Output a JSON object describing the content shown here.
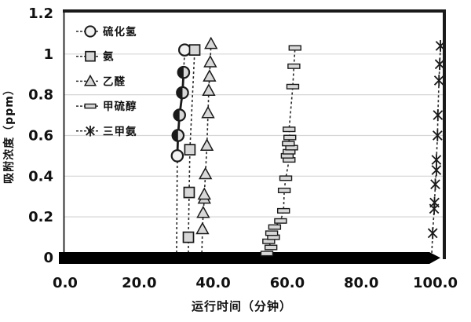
{
  "page": {
    "background": "#ffffff"
  },
  "chart_data": {
    "type": "scatter",
    "title": "",
    "xlabel": "运行时间（分钟）",
    "ylabel": "吸附浓度（ppm）",
    "xlim": [
      0,
      103
    ],
    "ylim": [
      0,
      1.2
    ],
    "grid": "horizontal-light",
    "legend_position": "upper-left-inside",
    "x_ticks": {
      "values": [
        0,
        20,
        40,
        60,
        80,
        100
      ],
      "labels": [
        "0.0",
        "20.0",
        "40.0",
        "60.0",
        "80.0",
        "100.0"
      ]
    },
    "y_ticks": {
      "values": [
        0,
        0.2,
        0.4,
        0.6,
        0.8,
        1.0,
        1.2
      ],
      "labels": [
        "0",
        "0.2",
        "0.4",
        "0.6",
        "0.8",
        "1",
        "1.2"
      ]
    },
    "baseline_band": {
      "description": "thick black band of overlapped zero-value points along y=0 ending in right arrow tip",
      "from_x": 0,
      "to_x": 100,
      "y": 0,
      "arrow_end": true
    },
    "series": [
      {
        "key": "h2s",
        "name": "硫化氢",
        "marker": "circle",
        "line": "dashed",
        "points": [
          [
            30.1,
            0
          ],
          [
            30.3,
            0.5
          ],
          [
            30.5,
            0.6
          ],
          [
            30.9,
            0.7
          ],
          [
            31.7,
            0.81
          ],
          [
            32.0,
            0.91
          ],
          [
            32.3,
            1.02
          ]
        ],
        "half_filled_indices": [
          2,
          3,
          4,
          5
        ],
        "solid_segment": [
          1,
          5
        ]
      },
      {
        "key": "nh3",
        "name": "氨",
        "marker": "square",
        "line": "dashed",
        "points": [
          [
            33.3,
            0
          ],
          [
            33.3,
            0.1
          ],
          [
            33.5,
            0.32
          ],
          [
            33.7,
            0.53
          ],
          [
            35.0,
            1.02
          ]
        ]
      },
      {
        "key": "acetaldehyde",
        "name": "乙醛",
        "marker": "triangle",
        "line": "dashed",
        "points": [
          [
            36.9,
            0
          ],
          [
            37.1,
            0.14
          ],
          [
            37.3,
            0.22
          ],
          [
            37.6,
            0.29
          ],
          [
            37.6,
            0.31
          ],
          [
            37.9,
            0.41
          ],
          [
            38.3,
            0.55
          ],
          [
            38.6,
            0.71
          ],
          [
            38.8,
            0.82
          ],
          [
            39.0,
            0.89
          ],
          [
            39.2,
            0.96
          ],
          [
            39.4,
            1.05
          ]
        ]
      },
      {
        "key": "methyl-mercaptan",
        "name": "甲硫醇",
        "marker": "dash-bar",
        "line": "dashed",
        "points": [
          [
            54.2,
            0
          ],
          [
            54.5,
            0.02
          ],
          [
            55.6,
            0.05
          ],
          [
            55.0,
            0.08
          ],
          [
            56.3,
            0.1
          ],
          [
            55.8,
            0.12
          ],
          [
            56.6,
            0.15
          ],
          [
            58.2,
            0.18
          ],
          [
            59.0,
            0.23
          ],
          [
            59.2,
            0.33
          ],
          [
            59.6,
            0.39
          ],
          [
            60.5,
            0.48
          ],
          [
            60.0,
            0.5
          ],
          [
            60.5,
            0.52
          ],
          [
            61.2,
            0.54
          ],
          [
            60.3,
            0.56
          ],
          [
            60.7,
            0.59
          ],
          [
            60.5,
            0.63
          ],
          [
            61.5,
            0.84
          ],
          [
            61.8,
            0.94
          ],
          [
            62.1,
            1.03
          ]
        ]
      },
      {
        "key": "trimethylamine",
        "name": "三甲氨",
        "marker": "asterisk",
        "line": "dashed",
        "points": [
          [
            99.0,
            0
          ],
          [
            99.3,
            0.12
          ],
          [
            99.7,
            0.24
          ],
          [
            99.8,
            0.27
          ],
          [
            100.0,
            0.36
          ],
          [
            100.3,
            0.43
          ],
          [
            100.3,
            0.48
          ],
          [
            100.6,
            0.6
          ],
          [
            100.7,
            0.7
          ],
          [
            101.0,
            0.87
          ],
          [
            101.2,
            0.95
          ],
          [
            101.4,
            1.04
          ]
        ]
      }
    ],
    "colors": {
      "marker_fill": "#d8d8d8",
      "marker_stroke": "#1a1a1a",
      "line": "#2a2a2a",
      "grid": "#d6d6d6",
      "frame": "#1a1a1a",
      "band": "#000000",
      "text": "#111111"
    }
  }
}
